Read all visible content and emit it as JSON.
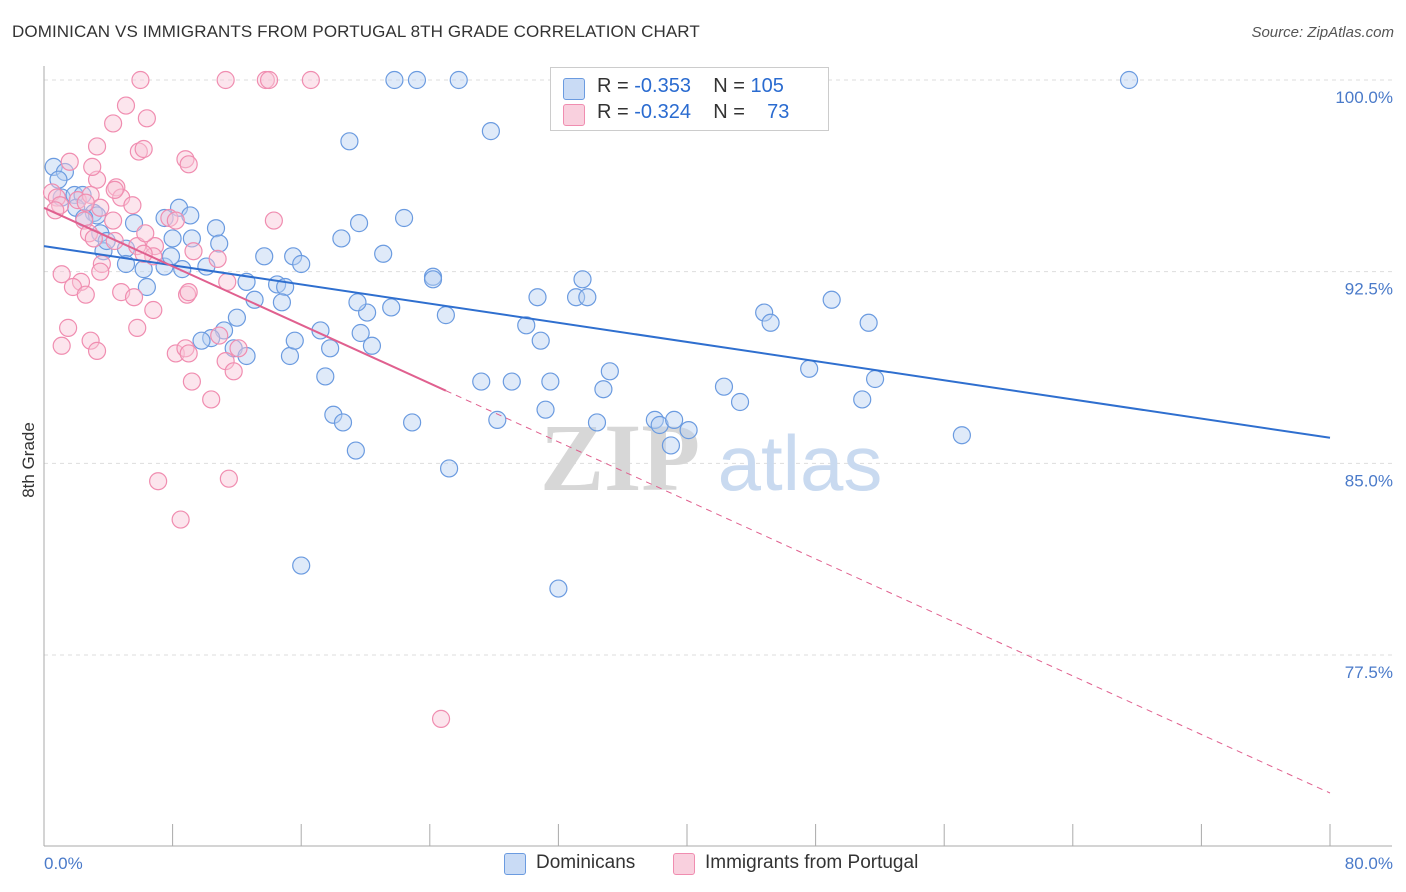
{
  "title": "DOMINICAN VS IMMIGRANTS FROM PORTUGAL 8TH GRADE CORRELATION CHART",
  "source": "Source: ZipAtlas.com",
  "watermark": {
    "zip": "ZIP",
    "atlas": "atlas"
  },
  "legend": {
    "dominicans": {
      "r_label": "R =",
      "r_value": "-0.353",
      "n_label": "N =",
      "n_value": "105"
    },
    "portugal": {
      "r_label": "R =",
      "r_value": "-0.324",
      "n_label": "N =",
      "n_value": "73"
    }
  },
  "bottom_legend": {
    "dominicans": "Dominicans",
    "portugal": "Immigrants from Portugal"
  },
  "chart_data": {
    "type": "scatter",
    "xlabel": "",
    "ylabel": "8th Grade",
    "xlim": [
      0,
      80
    ],
    "ylim": [
      70.5,
      101.3
    ],
    "x_tick_labels": [
      "0.0%",
      "80.0%"
    ],
    "y_ticks": [
      100.0,
      92.5,
      85.0,
      77.5
    ],
    "y_tick_labels": [
      "100.0%",
      "92.5%",
      "85.0%",
      "77.5%"
    ],
    "grid": true,
    "legend_position": "top-center",
    "colors": {
      "dominicans": "#6b9be0",
      "dominicans_line": "#2f6fcf",
      "portugal": "#f08db0",
      "portugal_line": "#e0608f"
    },
    "series": [
      {
        "name": "Dominicans",
        "trend": {
          "x": [
            0,
            80
          ],
          "y": [
            93.5,
            86.0
          ]
        },
        "points": [
          [
            0.6,
            96.6
          ],
          [
            1.3,
            96.4
          ],
          [
            0.9,
            96.1
          ],
          [
            1.1,
            95.4
          ],
          [
            1.9,
            95.5
          ],
          [
            2.4,
            95.5
          ],
          [
            2.0,
            95.0
          ],
          [
            3.1,
            94.8
          ],
          [
            3.3,
            94.7
          ],
          [
            2.5,
            94.6
          ],
          [
            3.5,
            94.0
          ],
          [
            5.6,
            94.4
          ],
          [
            8.4,
            95.0
          ],
          [
            7.5,
            94.6
          ],
          [
            9.1,
            94.7
          ],
          [
            10.7,
            94.2
          ],
          [
            5.1,
            93.4
          ],
          [
            3.7,
            93.3
          ],
          [
            9.2,
            93.8
          ],
          [
            10.9,
            93.6
          ],
          [
            6.2,
            92.6
          ],
          [
            5.1,
            92.8
          ],
          [
            7.5,
            92.7
          ],
          [
            8.6,
            92.6
          ],
          [
            10.1,
            92.7
          ],
          [
            13.7,
            93.1
          ],
          [
            15.5,
            93.1
          ],
          [
            16.0,
            92.8
          ],
          [
            18.5,
            93.8
          ],
          [
            19.6,
            94.4
          ],
          [
            22.4,
            94.6
          ],
          [
            21.1,
            93.2
          ],
          [
            14.5,
            92.0
          ],
          [
            12.6,
            92.1
          ],
          [
            15.0,
            91.9
          ],
          [
            13.1,
            91.4
          ],
          [
            14.8,
            91.3
          ],
          [
            12.0,
            90.7
          ],
          [
            11.2,
            90.2
          ],
          [
            10.4,
            89.9
          ],
          [
            9.8,
            89.8
          ],
          [
            11.8,
            89.5
          ],
          [
            12.6,
            89.2
          ],
          [
            15.3,
            89.2
          ],
          [
            15.6,
            89.8
          ],
          [
            17.2,
            90.2
          ],
          [
            17.8,
            89.5
          ],
          [
            17.5,
            88.4
          ],
          [
            19.7,
            90.1
          ],
          [
            20.4,
            89.6
          ],
          [
            20.1,
            90.9
          ],
          [
            21.6,
            91.1
          ],
          [
            19.5,
            91.3
          ],
          [
            24.2,
            92.3
          ],
          [
            25.0,
            90.8
          ],
          [
            27.2,
            88.2
          ],
          [
            29.1,
            88.2
          ],
          [
            30.0,
            90.4
          ],
          [
            30.9,
            89.8
          ],
          [
            31.5,
            88.2
          ],
          [
            31.2,
            87.1
          ],
          [
            30.7,
            91.5
          ],
          [
            33.1,
            91.5
          ],
          [
            33.5,
            92.2
          ],
          [
            33.8,
            91.5
          ],
          [
            35.2,
            88.6
          ],
          [
            34.8,
            87.9
          ],
          [
            34.4,
            86.6
          ],
          [
            38.0,
            86.7
          ],
          [
            38.3,
            86.5
          ],
          [
            39.2,
            86.7
          ],
          [
            40.1,
            86.3
          ],
          [
            39.0,
            85.7
          ],
          [
            42.3,
            88.0
          ],
          [
            43.3,
            87.4
          ],
          [
            44.8,
            90.9
          ],
          [
            45.2,
            90.5
          ],
          [
            47.6,
            88.7
          ],
          [
            49.0,
            91.4
          ],
          [
            51.3,
            90.5
          ],
          [
            51.7,
            88.3
          ],
          [
            50.9,
            87.5
          ],
          [
            57.1,
            86.1
          ],
          [
            18.0,
            86.9
          ],
          [
            18.6,
            86.6
          ],
          [
            19.4,
            85.5
          ],
          [
            22.9,
            86.6
          ],
          [
            25.2,
            84.8
          ],
          [
            28.2,
            86.7
          ],
          [
            16.0,
            81.0
          ],
          [
            32.0,
            80.1
          ],
          [
            19.0,
            97.6
          ],
          [
            27.8,
            98.0
          ],
          [
            21.8,
            100.0
          ],
          [
            23.2,
            100.0
          ],
          [
            25.8,
            100.0
          ],
          [
            32.4,
            100.0
          ],
          [
            67.5,
            100.0
          ],
          [
            8.0,
            93.8
          ],
          [
            6.4,
            91.9
          ],
          [
            3.9,
            93.7
          ],
          [
            7.9,
            93.1
          ],
          [
            24.2,
            92.2
          ]
        ]
      },
      {
        "name": "Immigrants from Portugal",
        "trend": {
          "x": [
            0,
            80
          ],
          "y": [
            95.0,
            72.1
          ],
          "solid_until_x": 25
        },
        "points": [
          [
            0.5,
            95.6
          ],
          [
            0.8,
            95.4
          ],
          [
            1.0,
            95.1
          ],
          [
            0.7,
            94.9
          ],
          [
            1.6,
            96.8
          ],
          [
            3.3,
            96.1
          ],
          [
            3.0,
            96.6
          ],
          [
            2.1,
            95.3
          ],
          [
            2.9,
            95.5
          ],
          [
            3.5,
            95.0
          ],
          [
            2.5,
            94.5
          ],
          [
            4.5,
            95.8
          ],
          [
            4.8,
            95.4
          ],
          [
            4.3,
            94.5
          ],
          [
            5.5,
            95.1
          ],
          [
            3.3,
            97.4
          ],
          [
            5.9,
            97.2
          ],
          [
            8.8,
            96.9
          ],
          [
            9.0,
            96.7
          ],
          [
            4.3,
            98.3
          ],
          [
            5.1,
            99.0
          ],
          [
            6.4,
            98.5
          ],
          [
            2.8,
            94.0
          ],
          [
            3.1,
            93.8
          ],
          [
            4.4,
            93.7
          ],
          [
            5.8,
            93.5
          ],
          [
            6.9,
            93.5
          ],
          [
            7.8,
            94.6
          ],
          [
            8.2,
            94.5
          ],
          [
            9.3,
            93.3
          ],
          [
            10.8,
            93.0
          ],
          [
            6.8,
            93.1
          ],
          [
            1.1,
            92.4
          ],
          [
            2.3,
            92.1
          ],
          [
            1.8,
            91.9
          ],
          [
            2.6,
            91.6
          ],
          [
            3.6,
            92.8
          ],
          [
            3.5,
            92.5
          ],
          [
            4.8,
            91.7
          ],
          [
            5.6,
            91.5
          ],
          [
            6.8,
            91.0
          ],
          [
            8.9,
            91.6
          ],
          [
            9.0,
            91.7
          ],
          [
            1.5,
            90.3
          ],
          [
            1.1,
            89.6
          ],
          [
            2.9,
            89.8
          ],
          [
            3.3,
            89.4
          ],
          [
            5.8,
            90.3
          ],
          [
            8.2,
            89.3
          ],
          [
            8.8,
            89.5
          ],
          [
            10.9,
            90.0
          ],
          [
            12.1,
            89.5
          ],
          [
            11.3,
            89.0
          ],
          [
            11.8,
            88.6
          ],
          [
            9.2,
            88.2
          ],
          [
            10.4,
            87.5
          ],
          [
            14.3,
            94.5
          ],
          [
            11.4,
            92.1
          ],
          [
            6.3,
            94.0
          ],
          [
            6.2,
            93.2
          ],
          [
            9.0,
            89.3
          ],
          [
            7.1,
            84.3
          ],
          [
            8.5,
            82.8
          ],
          [
            11.5,
            84.4
          ],
          [
            24.7,
            75.0
          ],
          [
            6.0,
            100.0
          ],
          [
            11.3,
            100.0
          ],
          [
            13.8,
            100.0
          ],
          [
            14.0,
            100.0
          ],
          [
            16.6,
            100.0
          ],
          [
            6.2,
            97.3
          ],
          [
            4.4,
            95.7
          ],
          [
            2.6,
            95.2
          ]
        ]
      }
    ]
  }
}
